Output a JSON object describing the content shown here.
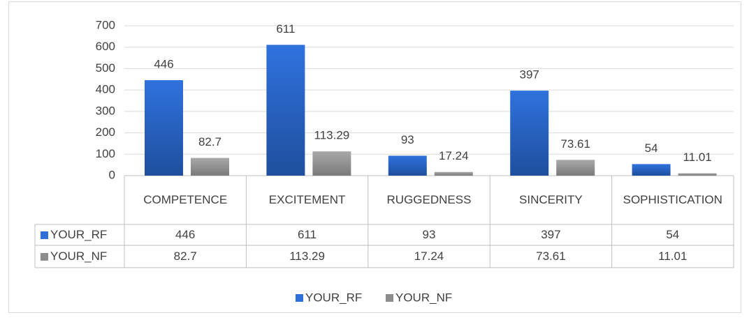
{
  "chart_data": {
    "type": "bar",
    "categories": [
      "COMPETENCE",
      "EXCITEMENT",
      "RUGGEDNESS",
      "SINCERITY",
      "SOPHISTICATION"
    ],
    "series": [
      {
        "name": "YOUR_RF",
        "color": "#2e6fd8",
        "values": [
          446,
          611,
          93,
          397,
          54
        ]
      },
      {
        "name": "YOUR_NF",
        "color": "#8c8c8c",
        "values": [
          82.7,
          113.29,
          17.24,
          73.61,
          11.01
        ]
      }
    ],
    "ylim": [
      0,
      700
    ],
    "yticks": [
      0,
      100,
      200,
      300,
      400,
      500,
      600,
      700
    ],
    "grid": true,
    "legend": "bottom",
    "data_table": true
  }
}
